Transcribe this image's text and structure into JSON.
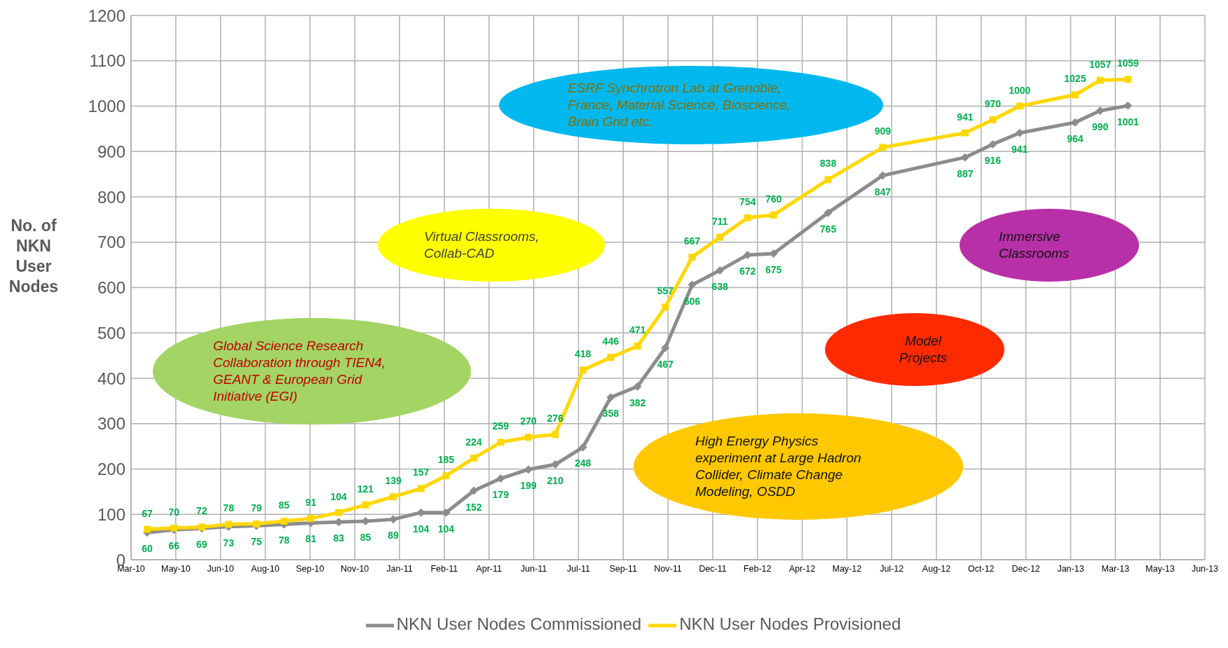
{
  "chart_data": {
    "type": "line",
    "ylabel": "No. of NKN User Nodes",
    "x": [
      "2010-04",
      "2010-05",
      "2010-06",
      "2010-07",
      "2010-08",
      "2010-09",
      "2010-10",
      "2010-11",
      "2010-12",
      "2011-01",
      "2011-02",
      "2011-03",
      "2011-04",
      "2011-05",
      "2011-06",
      "2011-07",
      "2011-08",
      "2011-09",
      "2011-10",
      "2011-11",
      "2011-12",
      "2012-01",
      "2012-02",
      "2012-03",
      "2012-05",
      "2012-07",
      "2012-10",
      "2012-11",
      "2012-12",
      "2013-02",
      "2013-03",
      "2013-04"
    ],
    "series": [
      {
        "name": "NKN User Nodes Commissioned",
        "color": "#8c8c8c",
        "marker": "diamond",
        "values": [
          60,
          66,
          69,
          73,
          75,
          78,
          81,
          83,
          85,
          89,
          104,
          104,
          152,
          179,
          199,
          210,
          248,
          358,
          382,
          467,
          606,
          638,
          672,
          675,
          765,
          847,
          887,
          916,
          941,
          964,
          990,
          1001
        ]
      },
      {
        "name": "NKN User Nodes Provisioned",
        "color": "#ffd700",
        "marker": "square",
        "values": [
          67,
          70,
          72,
          78,
          79,
          85,
          91,
          104,
          121,
          139,
          157,
          185,
          224,
          259,
          270,
          276,
          418,
          446,
          471,
          557,
          667,
          711,
          754,
          760,
          838,
          909,
          941,
          970,
          1000,
          1025,
          1057,
          1059
        ]
      }
    ],
    "data_labels": true,
    "xlim": [
      "2010-03-14",
      "2013-06-26"
    ],
    "xticks": [
      {
        "value": "2010-03-14",
        "label": "Mar-10"
      },
      {
        "value": "2010-05-03",
        "label": "May-10"
      },
      {
        "value": "2010-06-22",
        "label": "Jun-10"
      },
      {
        "value": "2010-08-11",
        "label": "Aug-10"
      },
      {
        "value": "2010-09-30",
        "label": "Sep-10"
      },
      {
        "value": "2010-11-19",
        "label": "Nov-10"
      },
      {
        "value": "2011-01-08",
        "label": "Jan-11"
      },
      {
        "value": "2011-02-27",
        "label": "Feb-11"
      },
      {
        "value": "2011-04-18",
        "label": "Apr-11"
      },
      {
        "value": "2011-06-07",
        "label": "Jun-11"
      },
      {
        "value": "2011-07-27",
        "label": "Jul-11"
      },
      {
        "value": "2011-09-15",
        "label": "Sep-11"
      },
      {
        "value": "2011-11-04",
        "label": "Nov-11"
      },
      {
        "value": "2011-12-24",
        "label": "Dec-11"
      },
      {
        "value": "2012-02-12",
        "label": "Feb-12"
      },
      {
        "value": "2012-04-02",
        "label": "Apr-12"
      },
      {
        "value": "2012-05-22",
        "label": "May-12"
      },
      {
        "value": "2012-07-11",
        "label": "Jul-12"
      },
      {
        "value": "2012-08-30",
        "label": "Aug-12"
      },
      {
        "value": "2012-10-19",
        "label": "Oct-12"
      },
      {
        "value": "2012-12-08",
        "label": "Dec-12"
      },
      {
        "value": "2013-01-27",
        "label": "Jan-13"
      },
      {
        "value": "2013-03-18",
        "label": "Mar-13"
      },
      {
        "value": "2013-05-07",
        "label": "May-13"
      },
      {
        "value": "2013-06-26",
        "label": "Jun-13"
      }
    ],
    "ylim": [
      0,
      1200
    ],
    "yticks": [
      0,
      100,
      200,
      300,
      400,
      500,
      600,
      700,
      800,
      900,
      1000,
      1100,
      1200
    ],
    "grid": true,
    "legend": "bottom",
    "line_style": "solid",
    "annotations": [
      "Global Science Research Collaboration through TIEN4, GEANT & European Grid Initiative (EGI)",
      "Virtual  Classrooms, Collab-CAD",
      "ESRF Synchrotron Lab at Grenoble, France, Material Science, Bioscience, Brain Grid etc.",
      "Immersive Classrooms",
      "Model Projects",
      "High Energy Physics experiment at Large Hadron Collider, Climate Change Modeling, OSDD"
    ]
  }
}
